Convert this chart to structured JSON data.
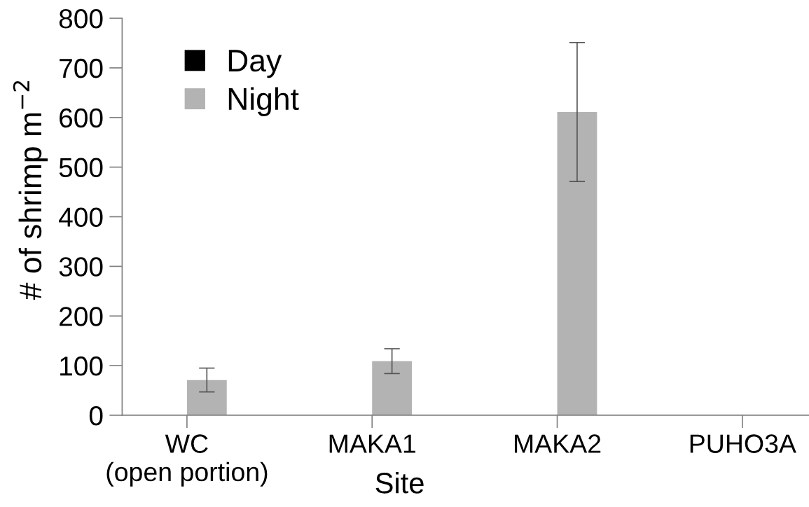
{
  "chart_data": {
    "type": "bar",
    "xlabel": "Site",
    "ylabel": "# of shrimp m$^{−2}$",
    "categories": [
      "WC\n(open portion)",
      "MAKA1",
      "MAKA2",
      "PUHO3A"
    ],
    "series": [
      {
        "name": "Day",
        "color": "#000000",
        "values": [
          0,
          0,
          0,
          0
        ]
      },
      {
        "name": "Night",
        "color": "#b3b3b3",
        "values": [
          71,
          109,
          611,
          0
        ],
        "errors": [
          24,
          25,
          140,
          null
        ]
      }
    ],
    "ylim": [
      0,
      800
    ],
    "yticks": [
      0,
      100,
      200,
      300,
      400,
      500,
      600,
      700,
      800
    ],
    "legend": "top left",
    "grid": false
  }
}
